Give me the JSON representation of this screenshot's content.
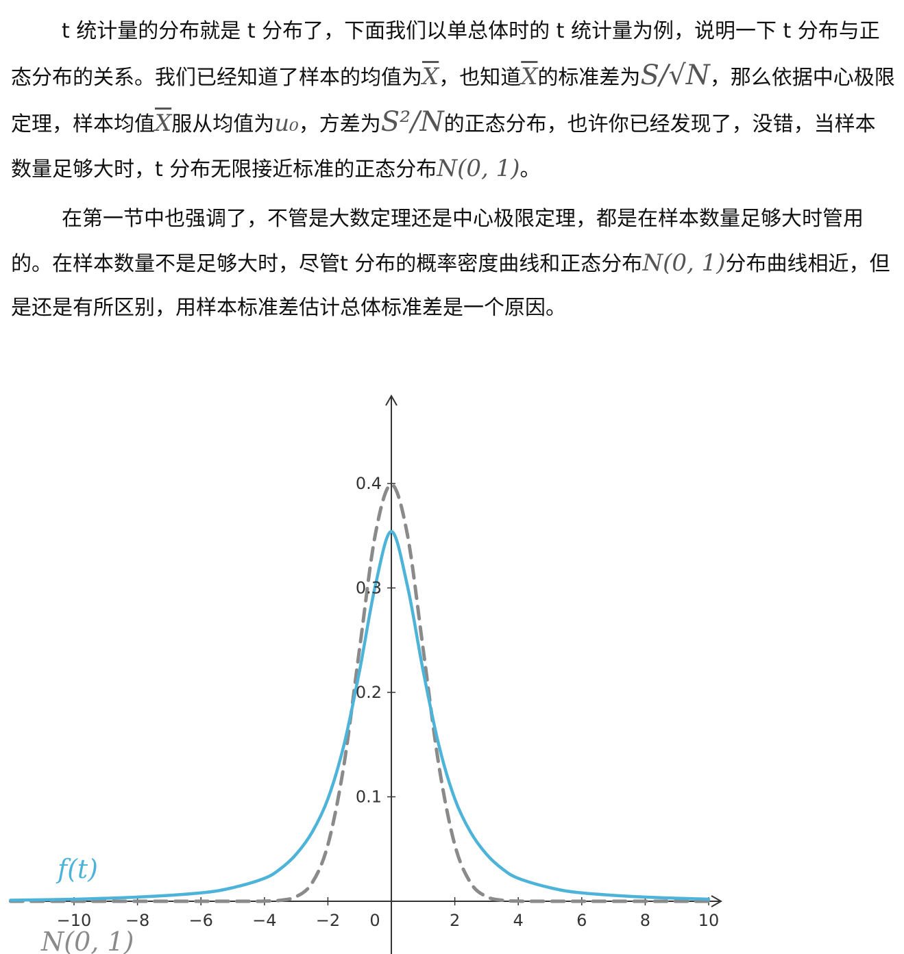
{
  "paragraph1": {
    "p1": "t 统计量的分布就是 t 分布了，下面我们以单总体时的 t 统计量为例，说明一下 t 分布与正态分布的关系。我们已经知道了样本的均值为",
    "m1": "X",
    "p2": "，也知道",
    "m2": "X",
    "p3": "的标准差为",
    "m3": "S/√N",
    "p4": "，那么依据中心极限定理，样本均值",
    "m4": "X",
    "p5": "服从均值为",
    "m5": "u₀",
    "p6": "，方差为",
    "m6": "S²/N",
    "p7": "的正态分布，也许你已经发现了，没错，当样本数量足够大时，t 分布无限接近标准的正态分布",
    "m7": "N(0, 1)",
    "p8": "。"
  },
  "paragraph2": {
    "p1": "在第一节中也强调了，不管是大数定理还是中心极限定理，都是在样本数量足够大时管用的。在样本数量不是足够大时，尽管t 分布的概率密度曲线和正态分布",
    "m1": "N(0, 1)",
    "p2": "分布曲线相近，但是还是有所区别，用样本标准差估计总体标准差是一个原因。"
  },
  "chart_data": {
    "type": "line",
    "xlim": [
      -12,
      10.5
    ],
    "ylim": [
      0,
      0.47
    ],
    "x_ticks": [
      -10,
      -8,
      -6,
      -4,
      -2,
      0,
      2,
      4,
      6,
      8,
      10
    ],
    "x_tick_labels": [
      "−10",
      "−8",
      "−6",
      "−4",
      "−2",
      "0",
      "2",
      "4",
      "6",
      "8",
      "10"
    ],
    "y_ticks": [
      0.1,
      0.2,
      0.3,
      0.4
    ],
    "y_tick_labels": [
      "0.1",
      "0.2",
      "0.3",
      "0.4"
    ],
    "grid": false,
    "series": [
      {
        "name": "f(t)",
        "style": "solid",
        "color": "#4db3d9",
        "x": [
          -12,
          -10,
          -8,
          -6,
          -5,
          -4,
          -3.5,
          -3,
          -2.5,
          -2,
          -1.5,
          -1,
          -0.5,
          0,
          0.5,
          1,
          1.5,
          2,
          2.5,
          3,
          3.5,
          4,
          5,
          6,
          8,
          10
        ],
        "y": [
          0.001,
          0.002,
          0.004,
          0.008,
          0.013,
          0.022,
          0.031,
          0.045,
          0.066,
          0.098,
          0.149,
          0.221,
          0.303,
          0.354,
          0.303,
          0.221,
          0.149,
          0.098,
          0.066,
          0.045,
          0.031,
          0.022,
          0.013,
          0.008,
          0.004,
          0.002
        ]
      },
      {
        "name": "N(0, 1)",
        "style": "dashed",
        "color": "#8a8a8a",
        "x": [
          -12,
          -5,
          -4,
          -3.5,
          -3,
          -2.5,
          -2,
          -1.5,
          -1,
          -0.5,
          0,
          0.5,
          1,
          1.5,
          2,
          2.5,
          3,
          3.5,
          4,
          5,
          10
        ],
        "y": [
          0,
          0,
          0.0001,
          0.0009,
          0.0044,
          0.0175,
          0.054,
          0.1295,
          0.242,
          0.3521,
          0.3989,
          0.3521,
          0.242,
          0.1295,
          0.054,
          0.0175,
          0.0044,
          0.0009,
          0.0001,
          0,
          0
        ]
      }
    ]
  }
}
